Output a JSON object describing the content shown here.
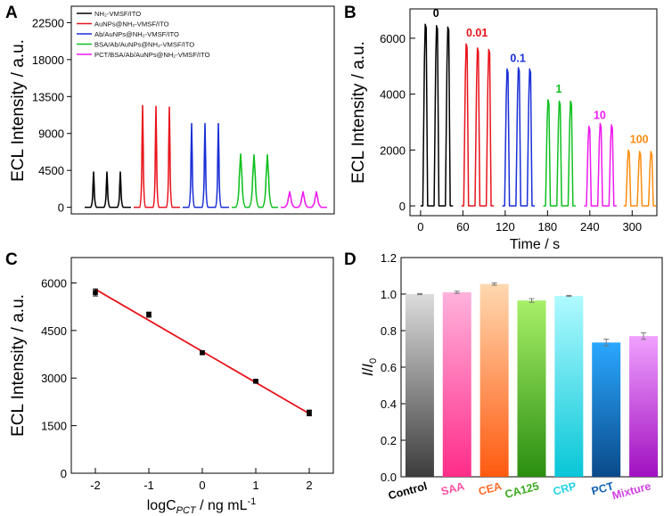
{
  "chart_data": [
    {
      "panel": "A",
      "type": "line",
      "ylabel": "ECL Intensity / a.u.",
      "xlabel": "",
      "ylim": [
        -800,
        24500
      ],
      "yticks": [
        0,
        4500,
        9000,
        13500,
        18000,
        22500
      ],
      "legend_position": "top-left",
      "series": [
        {
          "name": "NH₂-VMSF/ITO",
          "color": "#000000",
          "peaks": [
            4300,
            4300,
            4300
          ]
        },
        {
          "name": "AuNPs@NH₂-VMSF/ITO",
          "color": "#e8141c",
          "peaks": [
            12400,
            12300,
            12200
          ]
        },
        {
          "name": "Ab/AuNPs@NH₂-VMSF/ITO",
          "color": "#1a2fd6",
          "peaks": [
            10200,
            10200,
            10200
          ]
        },
        {
          "name": "BSA/Ab/AuNPs@NH₂-VMSF/ITO",
          "color": "#10c020",
          "peaks": [
            6500,
            6400,
            6400
          ]
        },
        {
          "name": "PCT/BSA/Ab/AuNPs@NH₂-VMSF/ITO",
          "color": "#ee1aee",
          "peaks": [
            1900,
            1900,
            1900
          ]
        }
      ]
    },
    {
      "panel": "B",
      "type": "line",
      "ylabel": "ECL Intensity / a.u.",
      "xlabel": "Time / s",
      "xlim": [
        -15,
        335
      ],
      "ylim": [
        -350,
        7050
      ],
      "xticks": [
        0,
        60,
        120,
        180,
        240,
        300
      ],
      "yticks": [
        0,
        2000,
        4000,
        6000
      ],
      "series": [
        {
          "name": "0",
          "color": "#000000",
          "start": 0,
          "peaks": [
            6500,
            6450,
            6400
          ]
        },
        {
          "name": "0.01",
          "color": "#e8141c",
          "start": 58,
          "peaks": [
            5800,
            5650,
            5600
          ]
        },
        {
          "name": "0.1",
          "color": "#1a2fd6",
          "start": 116,
          "peaks": [
            4900,
            4950,
            4900
          ]
        },
        {
          "name": "1",
          "color": "#10c020",
          "start": 174,
          "peaks": [
            3800,
            3750,
            3750
          ]
        },
        {
          "name": "10",
          "color": "#ee1aee",
          "start": 232,
          "peaks": [
            2850,
            2950,
            2900
          ]
        },
        {
          "name": "100",
          "color": "#ff8c10",
          "start": 288,
          "peaks": [
            2000,
            1950,
            1950
          ]
        }
      ]
    },
    {
      "panel": "C",
      "type": "scatter",
      "ylabel": "ECL Intensity / a.u.",
      "xlabel_main": "logC",
      "xlabel_sub": "PCT",
      "xlabel_unit": " / ng mL",
      "xlabel_sup": "-1",
      "xlim": [
        -2.45,
        2.45
      ],
      "ylim": [
        0,
        6800
      ],
      "xticks": [
        "-2",
        "-1",
        "0",
        "1",
        "2"
      ],
      "yticks": [
        0,
        1500,
        3000,
        4500,
        6000
      ],
      "x": [
        -2,
        -1,
        0,
        1,
        2
      ],
      "y": [
        5700,
        5000,
        3800,
        2900,
        1900
      ],
      "yerr": [
        110,
        80,
        50,
        50,
        90
      ],
      "fit": {
        "x": [
          -2,
          2
        ],
        "y": [
          5800,
          1880
        ],
        "color": "#e8141c"
      }
    },
    {
      "panel": "D",
      "type": "bar",
      "ylabel_main": "I",
      "ylabel_mid": "/",
      "ylabel_end": "I",
      "ylabel_sub": "0",
      "ylim": [
        0,
        1.2
      ],
      "yticks": [
        "0.0",
        "0.2",
        "0.4",
        "0.6",
        "0.8",
        "1.0",
        "1.2"
      ],
      "categories": [
        "Control",
        "SAA",
        "CEA",
        "CA125",
        "CRP",
        "PCT",
        "Mixture"
      ],
      "values": [
        1.0,
        1.01,
        1.055,
        0.965,
        0.99,
        0.735,
        0.77
      ],
      "errors": [
        0.003,
        0.006,
        0.006,
        0.01,
        0.003,
        0.018,
        0.018
      ],
      "label_colors": [
        "#000000",
        "#ff4fa0",
        "#ff6a2a",
        "#3aaa1a",
        "#22d2e8",
        "#1060b0",
        "#d040e0"
      ],
      "bar_top_colors": [
        "#dcdcdc",
        "#ffb2dc",
        "#ffd8b0",
        "#a8f068",
        "#b0faff",
        "#2aa8ff",
        "#f0a0ff"
      ],
      "bar_bottom_colors": [
        "#3c3c3c",
        "#ff2c8a",
        "#ff5a10",
        "#2a8e10",
        "#08c6d8",
        "#0a4a8a",
        "#a010c0"
      ]
    }
  ],
  "panel_labels": [
    "A",
    "B",
    "C",
    "D"
  ]
}
